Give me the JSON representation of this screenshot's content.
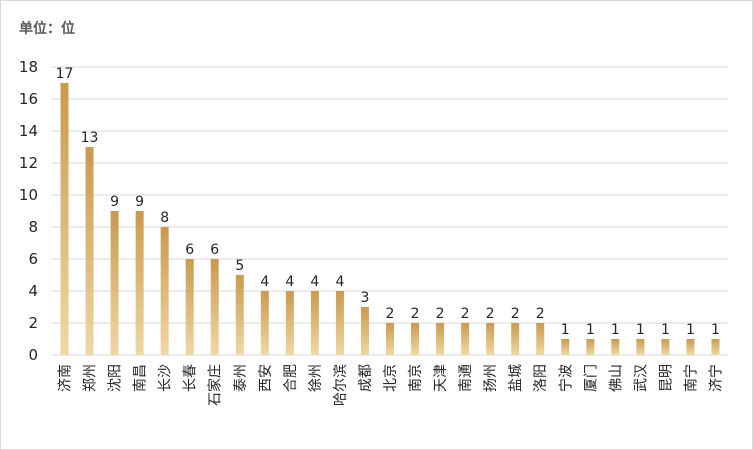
{
  "chart_data": {
    "type": "bar",
    "unit_label": "单位：位",
    "categories": [
      "济南",
      "郑州",
      "沈阳",
      "南昌",
      "长沙",
      "长春",
      "石家庄",
      "泰州",
      "西安",
      "合肥",
      "徐州",
      "哈尔滨",
      "成都",
      "北京",
      "南京",
      "天津",
      "南通",
      "扬州",
      "盐城",
      "洛阳",
      "宁波",
      "厦门",
      "佛山",
      "武汉",
      "昆明",
      "南宁",
      "济宁"
    ],
    "values": [
      17,
      13,
      9,
      9,
      8,
      6,
      6,
      5,
      4,
      4,
      4,
      4,
      3,
      2,
      2,
      2,
      2,
      2,
      2,
      2,
      1,
      1,
      1,
      1,
      1,
      1,
      1
    ],
    "ylim": [
      0,
      18
    ],
    "yticks": [
      0,
      2,
      4,
      6,
      8,
      10,
      12,
      14,
      16,
      18
    ],
    "grid": true,
    "colors": {
      "bar_top": "#c99a4e",
      "bar_bottom": "#f0d8a4",
      "grid": "#d9d9d9"
    }
  }
}
